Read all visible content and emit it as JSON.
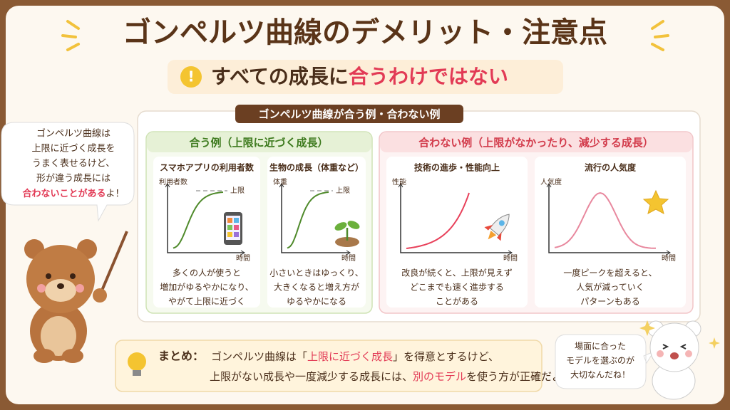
{
  "title": "ゴンペルツ曲線のデメリット・注意点",
  "subtitle": {
    "lead": "すべての成長に",
    "emphasis": "合うわけではない"
  },
  "panel_title": "ゴンペルツ曲線が合う例・合わない例",
  "fit": {
    "heading": "合う例（上限に近づく成長）",
    "examples": [
      {
        "title": "スマホアプリの利用者数",
        "y_label": "利用者数",
        "limit_label": "上限",
        "x_label": "時間",
        "description": [
          "多くの人が使うと",
          "増加がゆるやかになり、",
          "やがて上限に近づく"
        ]
      },
      {
        "title": "生物の成長（体重など）",
        "y_label": "体重",
        "limit_label": "上限",
        "x_label": "時間",
        "description": [
          "小さいときはゆっくり、",
          "大きくなると増え方が",
          "ゆるやかになる"
        ]
      }
    ]
  },
  "unfit": {
    "heading": "合わない例（上限がなかったり、減少する成長）",
    "examples": [
      {
        "title": "技術の進歩・性能向上",
        "y_label": "性能",
        "x_label": "時間",
        "description": [
          "改良が続くと、上限が見えず",
          "どこまでも速く進歩する",
          "ことがある"
        ]
      },
      {
        "title": "流行の人気度",
        "y_label": "人気度",
        "x_label": "時間",
        "description": [
          "一度ピークを超えると、",
          "人気が減っていく",
          "パターンもある"
        ]
      }
    ]
  },
  "bear_speech": {
    "lines": [
      "ゴンペルツ曲線は",
      "上限に近づく成長を",
      "うまく表せるけど、",
      "形が違う成長には"
    ],
    "emphasis": "合わないことがある",
    "ending": "よ！"
  },
  "summary": {
    "label": "まとめ：",
    "line1": {
      "before": "ゴンペルツ曲線は「",
      "emphasis": "上限に近づく成長",
      "after": "」を得意とするけど、"
    },
    "line2": {
      "before": "上限がない成長や一度減少する成長には、",
      "emphasis": "別のモデル",
      "after": "を使う方が正確だよ！"
    }
  },
  "white_bear_speech": [
    "場面に合った",
    "モデルを選ぶのが",
    "大切なんだね！"
  ]
}
